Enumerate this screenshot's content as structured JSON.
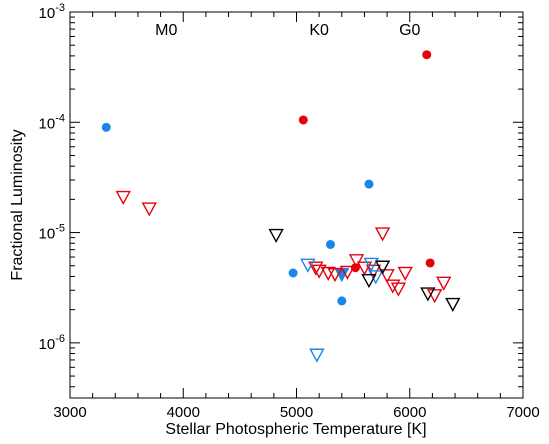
{
  "chart_data": {
    "type": "scatter",
    "xlabel": "Stellar Photospheric Temperature [K]",
    "ylabel": "Fractional Luminosity",
    "xlim": [
      3000,
      7000
    ],
    "ylim_exp": [
      -6.5,
      -3
    ],
    "yscale": "log",
    "x_ticks": [
      3000,
      4000,
      5000,
      6000,
      7000
    ],
    "y_ticks": [
      {
        "exp": -6,
        "base": "10",
        "power": "-6"
      },
      {
        "exp": -5,
        "base": "10",
        "power": "-5"
      },
      {
        "exp": -4,
        "base": "10",
        "power": "-4"
      },
      {
        "exp": -3,
        "base": "10",
        "power": "-3"
      }
    ],
    "spectral_types": [
      {
        "label": "M0",
        "x": 3850
      },
      {
        "label": "K0",
        "x": 5200
      },
      {
        "label": "G0",
        "x": 6000
      }
    ],
    "colors": {
      "red": "#e8000b",
      "blue": "#1b86e8",
      "black": "#000000"
    },
    "series": [
      {
        "marker": "filled-circle",
        "color": "red",
        "points": [
          [
            6150,
            0.00041
          ],
          [
            5060,
            0.000105
          ],
          [
            6180,
            5.3e-06
          ],
          [
            5520,
            4.8e-06
          ]
        ]
      },
      {
        "marker": "filled-circle",
        "color": "blue",
        "points": [
          [
            3320,
            9e-05
          ],
          [
            5640,
            2.75e-05
          ],
          [
            5300,
            7.8e-06
          ],
          [
            4970,
            4.3e-06
          ],
          [
            5400,
            2.4e-06
          ]
        ]
      },
      {
        "marker": "filled-triangle-down",
        "color": "blue",
        "points": [
          [
            5400,
            4.2e-06
          ]
        ]
      },
      {
        "marker": "open-triangle-down",
        "color": "red",
        "points": [
          [
            3470,
            2.1e-05
          ],
          [
            3700,
            1.65e-05
          ],
          [
            5760,
            9.8e-06
          ],
          [
            5530,
            5.6e-06
          ],
          [
            5170,
            4.8e-06
          ],
          [
            5200,
            4.5e-06
          ],
          [
            5280,
            4.3e-06
          ],
          [
            5340,
            4.2e-06
          ],
          [
            5450,
            4.4e-06
          ],
          [
            5600,
            4.8e-06
          ],
          [
            5680,
            4.5e-06
          ],
          [
            5800,
            4.1e-06
          ],
          [
            5850,
            3.3e-06
          ],
          [
            5900,
            3.1e-06
          ],
          [
            5960,
            4.3e-06
          ],
          [
            6220,
            2.7e-06
          ],
          [
            6300,
            3.5e-06
          ]
        ]
      },
      {
        "marker": "open-triangle-down",
        "color": "blue",
        "points": [
          [
            5100,
            5.1e-06
          ],
          [
            5660,
            5.2e-06
          ],
          [
            5700,
            4e-06
          ],
          [
            5180,
            7.8e-07
          ]
        ]
      },
      {
        "marker": "open-triangle-down",
        "color": "black",
        "points": [
          [
            4820,
            9.5e-06
          ],
          [
            5760,
            4.9e-06
          ],
          [
            5640,
            3.7e-06
          ],
          [
            6160,
            2.8e-06
          ],
          [
            6380,
            2.25e-06
          ]
        ]
      }
    ]
  }
}
